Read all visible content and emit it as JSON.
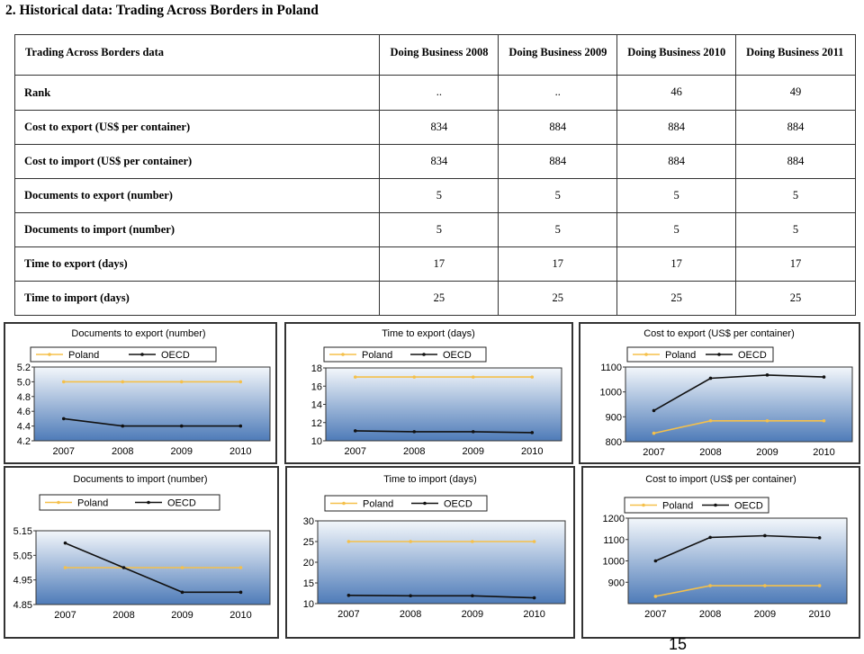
{
  "heading": "2. Historical data: Trading Across Borders in Poland",
  "table": {
    "header": [
      "Trading Across Borders data",
      "Doing Business 2008",
      "Doing Business 2009",
      "Doing Business 2010",
      "Doing Business 2011"
    ],
    "rows": [
      {
        "label": "Rank",
        "values": [
          "..",
          "..",
          "46",
          "49"
        ]
      },
      {
        "label": "Cost to export (US$ per container)",
        "values": [
          "834",
          "884",
          "884",
          "884"
        ]
      },
      {
        "label": "Cost to import (US$ per container)",
        "values": [
          "834",
          "884",
          "884",
          "884"
        ]
      },
      {
        "label": "Documents to export (number)",
        "values": [
          "5",
          "5",
          "5",
          "5"
        ]
      },
      {
        "label": "Documents to import (number)",
        "values": [
          "5",
          "5",
          "5",
          "5"
        ]
      },
      {
        "label": "Time to export (days)",
        "values": [
          "17",
          "17",
          "17",
          "17"
        ]
      },
      {
        "label": "Time to import (days)",
        "values": [
          "25",
          "25",
          "25",
          "25"
        ]
      }
    ]
  },
  "colors": {
    "poland": "#f5c04a",
    "oecd": "#111111",
    "plot_top": "#f3f7fb",
    "plot_bottom": "#4e7bb8"
  },
  "chart_data": [
    {
      "type": "line",
      "title": "Documents to export (number)",
      "x": [
        "2007",
        "2008",
        "2009",
        "2010"
      ],
      "series": [
        {
          "name": "Poland",
          "values": [
            5.0,
            5.0,
            5.0,
            5.0
          ]
        },
        {
          "name": "OECD",
          "values": [
            4.5,
            4.4,
            4.4,
            4.4
          ]
        }
      ],
      "ylim": [
        4.2,
        5.2
      ],
      "yticks": [
        "5.2",
        "5.0",
        "4.8",
        "4.6",
        "4.4",
        "4.2"
      ],
      "legend": "top"
    },
    {
      "type": "line",
      "title": "Time to export (days)",
      "x": [
        "2007",
        "2008",
        "2009",
        "2010"
      ],
      "series": [
        {
          "name": "Poland",
          "values": [
            17,
            17,
            17,
            17
          ]
        },
        {
          "name": "OECD",
          "values": [
            11.1,
            11.0,
            11.0,
            10.9
          ]
        }
      ],
      "ylim": [
        10,
        18
      ],
      "yticks": [
        "18",
        "16",
        "14",
        "12",
        "10"
      ],
      "legend": "top"
    },
    {
      "type": "line",
      "title": "Cost to export (US$ per container)",
      "x": [
        "2007",
        "2008",
        "2009",
        "2010"
      ],
      "series": [
        {
          "name": "Poland",
          "values": [
            834,
            884,
            884,
            884
          ]
        },
        {
          "name": "OECD",
          "values": [
            925,
            1055,
            1068,
            1060
          ]
        }
      ],
      "ylim": [
        800,
        1100
      ],
      "yticks": [
        "1100",
        "1000",
        "900",
        "800"
      ],
      "legend": "top"
    },
    {
      "type": "line",
      "title": "Documents to import (number)",
      "x": [
        "2007",
        "2008",
        "2009",
        "2010"
      ],
      "series": [
        {
          "name": "Poland",
          "values": [
            5.0,
            5.0,
            5.0,
            5.0
          ]
        },
        {
          "name": "OECD",
          "values": [
            5.1,
            5.0,
            4.9,
            4.9
          ]
        }
      ],
      "ylim": [
        4.85,
        5.15
      ],
      "yticks": [
        "5.15",
        "5.05",
        "4.95",
        "4.85"
      ],
      "legend": "top"
    },
    {
      "type": "line",
      "title": "Time to import (days)",
      "x": [
        "2007",
        "2008",
        "2009",
        "2010"
      ],
      "series": [
        {
          "name": "Poland",
          "values": [
            25,
            25,
            25,
            25
          ]
        },
        {
          "name": "OECD",
          "values": [
            12.0,
            11.9,
            11.9,
            11.4
          ]
        }
      ],
      "ylim": [
        10,
        30
      ],
      "yticks": [
        "30",
        "25",
        "20",
        "15",
        "10"
      ],
      "legend": "top"
    },
    {
      "type": "line",
      "title": "Cost to import (US$ per container)",
      "x": [
        "2007",
        "2008",
        "2009",
        "2010"
      ],
      "series": [
        {
          "name": "Poland",
          "values": [
            834,
            884,
            884,
            884
          ]
        },
        {
          "name": "OECD",
          "values": [
            1000,
            1110,
            1118,
            1108
          ]
        }
      ],
      "ylim": [
        800,
        1200
      ],
      "yticks": [
        "1200",
        "1100",
        "1000",
        "900"
      ],
      "legend": "top"
    }
  ],
  "page_number": "15"
}
